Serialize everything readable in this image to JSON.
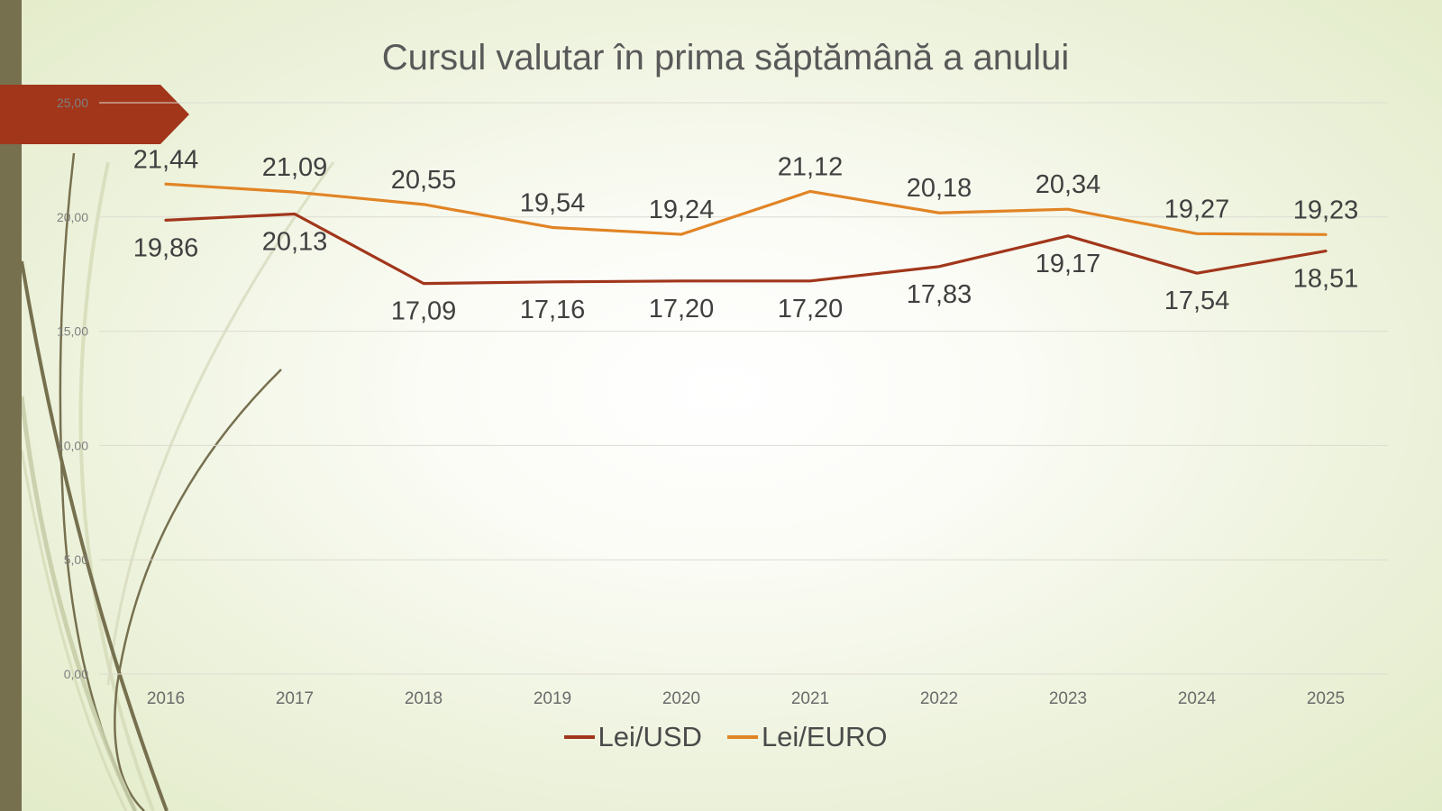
{
  "chart_data": {
    "type": "line",
    "title": "Cursul valutar în prima săptămână a anului",
    "categories": [
      "2016",
      "2017",
      "2018",
      "2019",
      "2020",
      "2021",
      "2022",
      "2023",
      "2024",
      "2025"
    ],
    "series": [
      {
        "name": "Lei/USD",
        "color": "#a1361b",
        "values": [
          19.86,
          20.13,
          17.09,
          17.16,
          17.2,
          17.2,
          17.83,
          19.17,
          17.54,
          18.51
        ],
        "data_labels": [
          "19,86",
          "20,13",
          "17,09",
          "17,16",
          "17,20",
          "17,20",
          "17,83",
          "19,17",
          "17,54",
          "18,51"
        ]
      },
      {
        "name": "Lei/EURO",
        "color": "#e18425",
        "values": [
          21.44,
          21.09,
          20.55,
          19.54,
          19.24,
          21.12,
          20.18,
          20.34,
          19.27,
          19.23
        ],
        "data_labels": [
          "21,44",
          "21,09",
          "20,55",
          "19,54",
          "19,24",
          "21,12",
          "20,18",
          "20,34",
          "19,27",
          "19,23"
        ]
      }
    ],
    "ylim": [
      0,
      25
    ],
    "yticks": [
      "0,00",
      "5,00",
      "10,00",
      "15,00",
      "20,00",
      "25,00"
    ],
    "grid": true,
    "legend_position": "bottom"
  }
}
